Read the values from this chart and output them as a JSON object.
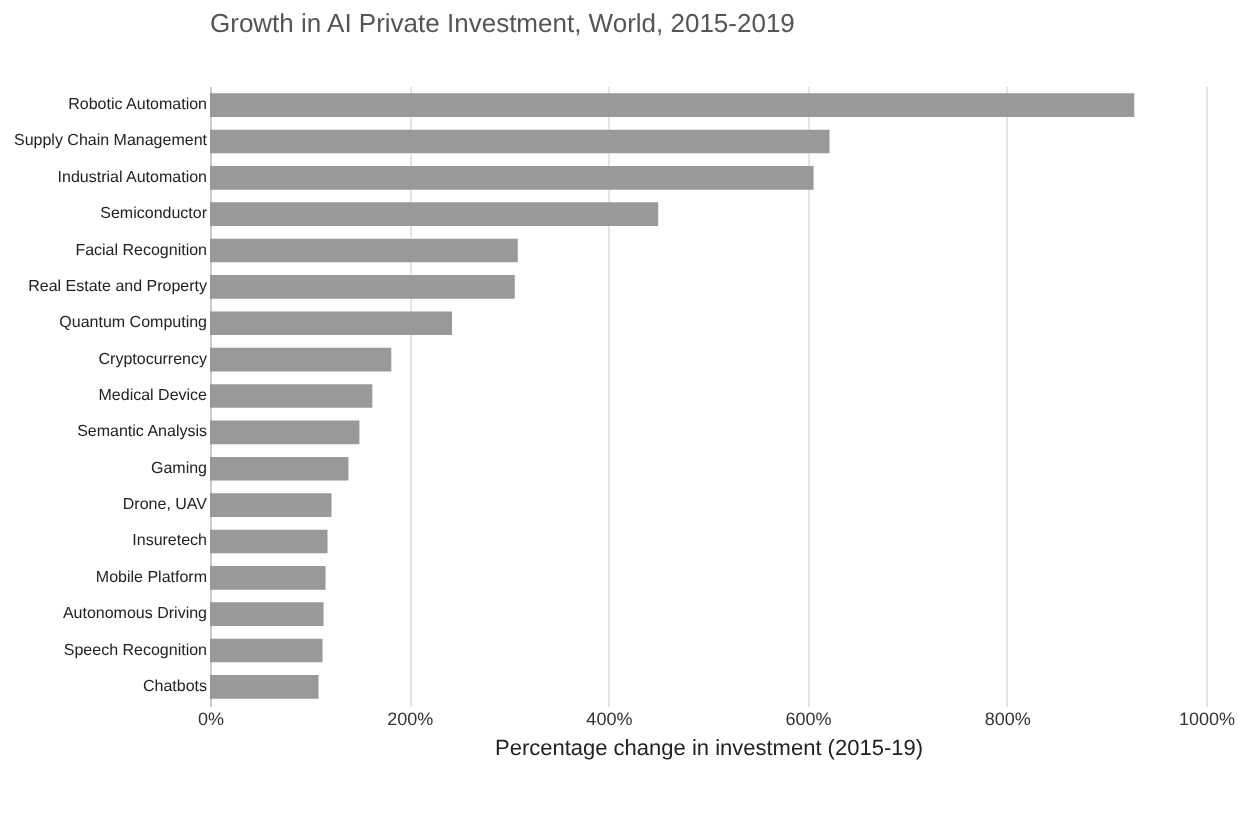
{
  "chart_data": {
    "type": "bar",
    "orientation": "horizontal",
    "title": "Growth in AI Private Investment, World, 2015-2019",
    "xlabel": "Percentage change in investment (2015-19)",
    "categories": [
      "Robotic Automation",
      "Supply Chain Management",
      "Industrial Automation",
      "Semiconductor",
      "Facial Recognition",
      "Real Estate and Property",
      "Quantum Computing",
      "Cryptocurrency",
      "Medical Device",
      "Semantic Analysis",
      "Gaming",
      "Drone, UAV",
      "Insuretech",
      "Mobile Platform",
      "Autonomous Driving",
      "Speech Recognition",
      "Chatbots"
    ],
    "values": [
      928,
      622,
      606,
      450,
      309,
      306,
      243,
      182,
      163,
      150,
      139,
      122,
      118,
      116,
      114,
      113,
      109
    ],
    "color": "#999999",
    "xlim": [
      0,
      1000
    ],
    "xticks": [
      {
        "value": 0,
        "label": "0%"
      },
      {
        "value": 200,
        "label": "200%"
      },
      {
        "value": 400,
        "label": "400%"
      },
      {
        "value": 600,
        "label": "600%"
      },
      {
        "value": 800,
        "label": "800%"
      },
      {
        "value": 1000,
        "label": "1000%"
      }
    ],
    "grid": "x"
  }
}
